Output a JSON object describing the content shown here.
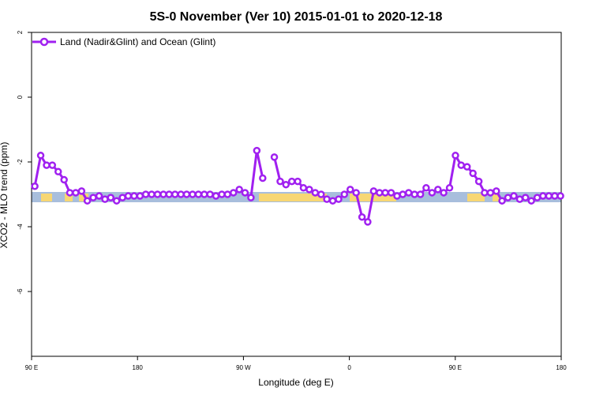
{
  "chart_data": {
    "type": "line",
    "title": "5S-0 November (Ver 10)   2015-01-01 to 2020-12-18",
    "xlabel": "Longitude (deg E)",
    "ylabel": "XCO2 - MLO trend (ppm)",
    "xlim": [
      90,
      450
    ],
    "ylim": [
      -8,
      2
    ],
    "x_ticks": [
      {
        "value": 90,
        "label": "90 E"
      },
      {
        "value": 162,
        "label": "180"
      },
      {
        "value": 234,
        "label": "90 W"
      },
      {
        "value": 306,
        "label": "0"
      },
      {
        "value": 378,
        "label": "90 E"
      },
      {
        "value": 450,
        "label": "180"
      }
    ],
    "y_ticks": [
      {
        "value": 2,
        "label": "2"
      },
      {
        "value": 0,
        "label": "0"
      },
      {
        "value": -2,
        "label": "-2"
      },
      {
        "value": -4,
        "label": "-4"
      },
      {
        "value": -6,
        "label": "-6"
      }
    ],
    "grid": false,
    "legend_position": "top-left",
    "colors": {
      "series": "#a020f0",
      "ocean_band": "#a8bedc",
      "land_band": "#f7d774"
    },
    "series": [
      {
        "name": "Land (Nadir&Glint) and Ocean (Glint)",
        "x": [
          92.2,
          96.2,
          100.2,
          104.1,
          108.1,
          112.1,
          116.0,
          120.0,
          124.0,
          127.9,
          131.9,
          135.9,
          139.9,
          143.8,
          147.8,
          151.8,
          155.7,
          159.7,
          163.7,
          167.6,
          171.6,
          175.6,
          179.6,
          183.5,
          187.5,
          191.5,
          195.4,
          199.4,
          203.4,
          207.4,
          211.3,
          215.3,
          219.3,
          223.2,
          227.2,
          231.2,
          235.1,
          239.1,
          243.1,
          247.1,
          251.0,
          255.0,
          259.0,
          262.9,
          266.9,
          270.9,
          274.8,
          278.8,
          282.8,
          286.8,
          290.7,
          294.7,
          298.7,
          302.6,
          306.6,
          310.6,
          314.6,
          318.5,
          322.5,
          326.5,
          330.4,
          334.4,
          338.4,
          342.3,
          346.3,
          350.3,
          354.3,
          358.2,
          362.2,
          366.2,
          370.1,
          374.1,
          378.1,
          382.0,
          386.0,
          390.0,
          394.0,
          397.9,
          401.9,
          405.9,
          409.8,
          413.8,
          417.8,
          421.8,
          425.7,
          429.7,
          433.7,
          437.6,
          441.6,
          445.6,
          449.5
        ],
        "y": [
          -2.75,
          -1.8,
          -2.1,
          -2.1,
          -2.3,
          -2.55,
          -2.95,
          -2.95,
          -2.9,
          -3.2,
          -3.1,
          -3.05,
          -3.15,
          -3.1,
          -3.2,
          -3.1,
          -3.05,
          -3.05,
          -3.05,
          -3.0,
          -3.0,
          -3.0,
          -3.0,
          -3.0,
          -3.0,
          -3.0,
          -3.0,
          -3.0,
          -3.0,
          -3.0,
          -3.0,
          -3.05,
          -3.0,
          -3.0,
          -2.95,
          -2.85,
          -2.95,
          -3.1,
          -1.65,
          -2.5,
          null,
          -1.85,
          -2.6,
          -2.7,
          -2.6,
          -2.6,
          -2.8,
          -2.85,
          -2.95,
          -3.0,
          -3.15,
          -3.2,
          -3.15,
          -3.0,
          -2.85,
          -2.95,
          -3.7,
          -3.85,
          -2.9,
          -2.95,
          -2.95,
          -2.95,
          -3.05,
          -3.0,
          -2.95,
          -3.0,
          -3.0,
          -2.8,
          -2.95,
          -2.85,
          -2.95,
          -2.8,
          -1.8,
          -2.1,
          -2.15,
          -2.35,
          -2.6,
          -2.95,
          -2.95,
          -2.9,
          -3.2,
          -3.1,
          -3.05,
          -3.15,
          -3.1,
          -3.2,
          -3.1,
          -3.05,
          -3.05,
          -3.05,
          -3.05
        ]
      }
    ]
  }
}
